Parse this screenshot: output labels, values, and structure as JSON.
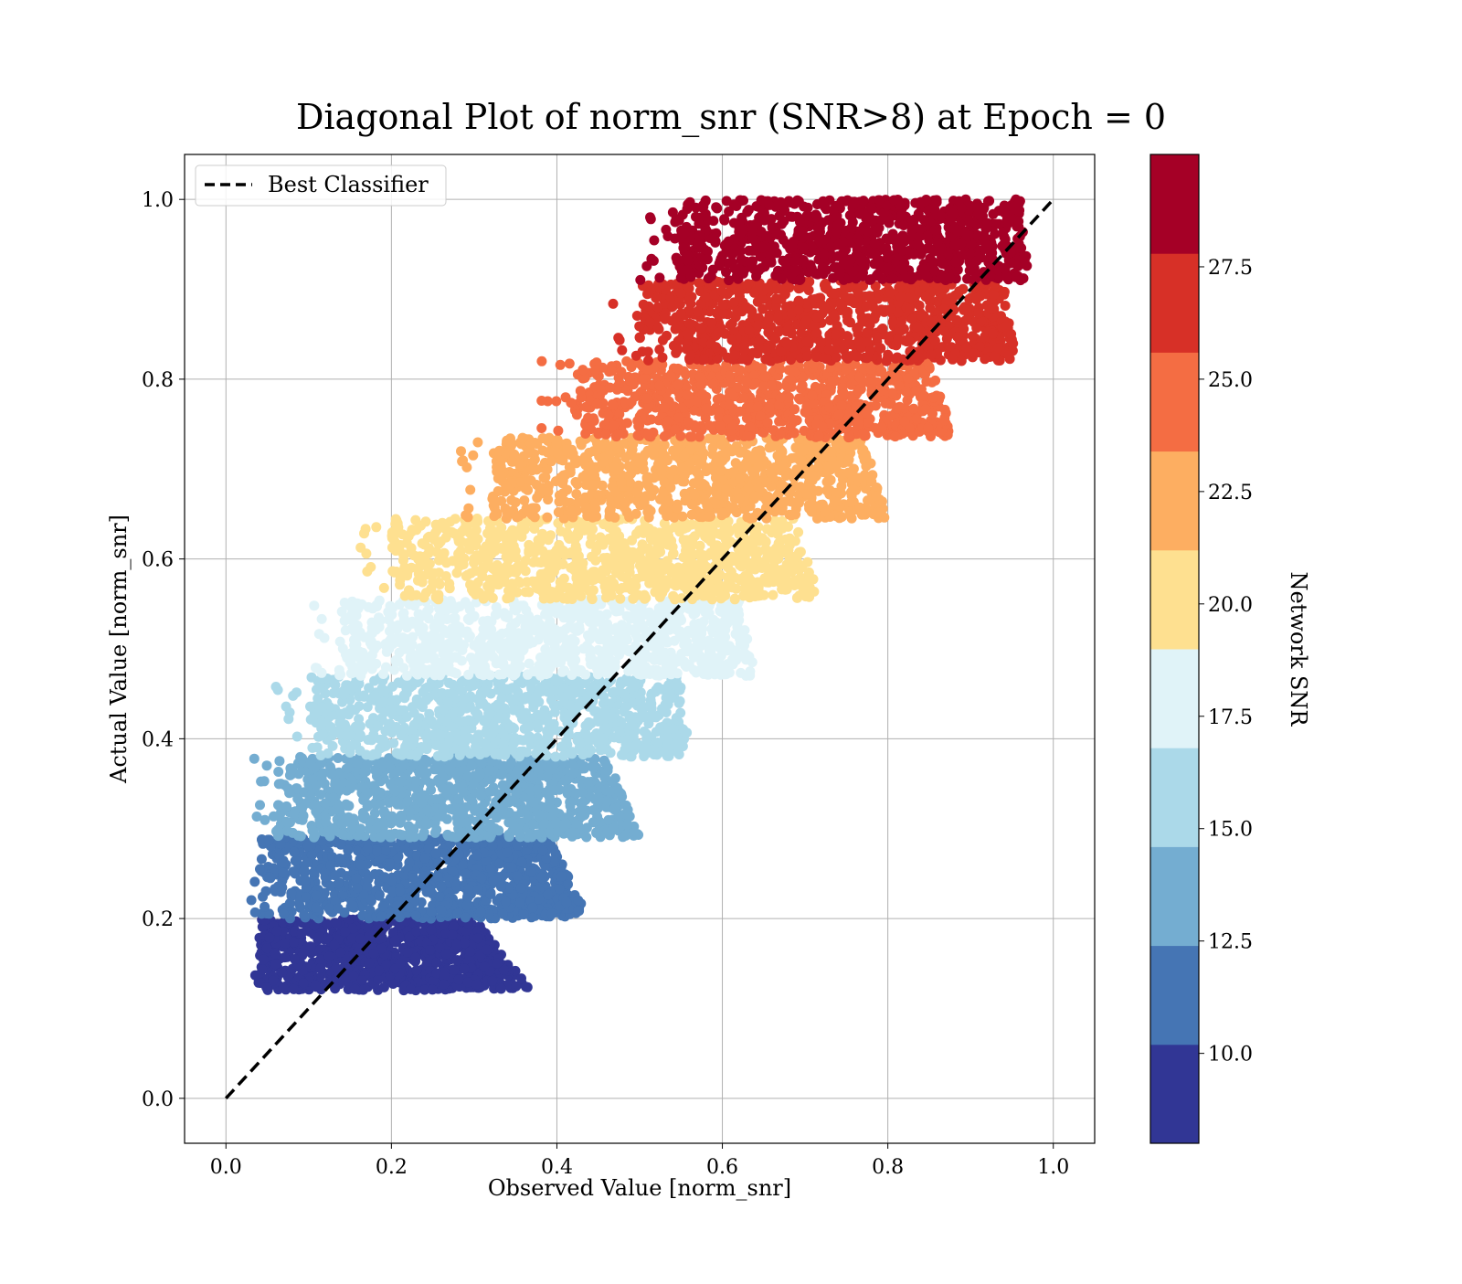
{
  "chart_data": {
    "type": "scatter",
    "title": "Diagonal Plot of norm_snr (SNR>8) at Epoch = 0",
    "xlabel": "Observed Value [norm_snr]",
    "ylabel": "Actual Value [norm_snr]",
    "xlim": [
      -0.05,
      1.05
    ],
    "ylim": [
      -0.05,
      1.05
    ],
    "x_ticks": [
      0.0,
      0.2,
      0.4,
      0.6,
      0.8,
      1.0
    ],
    "y_ticks": [
      0.0,
      0.2,
      0.4,
      0.6,
      0.8,
      1.0
    ],
    "x_tick_labels": [
      "0.0",
      "0.2",
      "0.4",
      "0.6",
      "0.8",
      "1.0"
    ],
    "y_tick_labels": [
      "0.0",
      "0.2",
      "0.4",
      "0.6",
      "0.8",
      "1.0"
    ],
    "grid": true,
    "legend": {
      "location": "upper-left",
      "entries": [
        "Best Classifier"
      ]
    },
    "reference_line": {
      "name": "Best Classifier",
      "style": "dashed",
      "color": "#000000",
      "x": [
        0.0,
        1.0
      ],
      "y": [
        0.0,
        1.0
      ]
    },
    "colorbar": {
      "label": "Network SNR",
      "range": [
        8.0,
        30.0
      ],
      "ticks": [
        10.0,
        12.5,
        15.0,
        17.5,
        20.0,
        22.5,
        25.0,
        27.5
      ],
      "tick_labels": [
        "10.0",
        "12.5",
        "15.0",
        "17.5",
        "20.0",
        "22.5",
        "25.0",
        "27.5"
      ],
      "colors": [
        "#313695",
        "#4575b4",
        "#74add1",
        "#abd9e9",
        "#e0f3f8",
        "#fee090",
        "#fdae61",
        "#f46d43",
        "#d73027",
        "#a50026"
      ]
    },
    "bands": [
      {
        "snr": 9.0,
        "color": "#313695",
        "y_range": [
          0.12,
          0.2
        ],
        "x_min": 0.04,
        "x_max_at_low": 0.37,
        "x_max_at_high": 0.3
      },
      {
        "snr": 11.2,
        "color": "#4575b4",
        "y_range": [
          0.2,
          0.29
        ],
        "x_min": 0.04,
        "x_max_at_low": 0.44,
        "x_max_at_high": 0.39
      },
      {
        "snr": 13.4,
        "color": "#74add1",
        "y_range": [
          0.29,
          0.38
        ],
        "x_min": 0.06,
        "x_max_at_low": 0.5,
        "x_max_at_high": 0.46
      },
      {
        "snr": 15.6,
        "color": "#abd9e9",
        "y_range": [
          0.38,
          0.47
        ],
        "x_min": 0.1,
        "x_max_at_low": 0.56,
        "x_max_at_high": 0.55
      },
      {
        "snr": 17.8,
        "color": "#e0f3f8",
        "y_range": [
          0.47,
          0.555
        ],
        "x_min": 0.14,
        "x_max_at_low": 0.64,
        "x_max_at_high": 0.62
      },
      {
        "snr": 20.0,
        "color": "#fee090",
        "y_range": [
          0.555,
          0.645
        ],
        "x_min": 0.2,
        "x_max_at_low": 0.72,
        "x_max_at_high": 0.69
      },
      {
        "snr": 22.2,
        "color": "#fdae61",
        "y_range": [
          0.645,
          0.735
        ],
        "x_min": 0.32,
        "x_max_at_low": 0.8,
        "x_max_at_high": 0.77
      },
      {
        "snr": 24.4,
        "color": "#f46d43",
        "y_range": [
          0.735,
          0.82
        ],
        "x_min": 0.42,
        "x_max_at_low": 0.88,
        "x_max_at_high": 0.85
      },
      {
        "snr": 26.6,
        "color": "#d73027",
        "y_range": [
          0.82,
          0.91
        ],
        "x_min": 0.5,
        "x_max_at_low": 0.96,
        "x_max_at_high": 0.94
      },
      {
        "snr": 28.8,
        "color": "#a50026",
        "y_range": [
          0.91,
          1.0
        ],
        "x_min": 0.54,
        "x_max_at_low": 0.97,
        "x_max_at_high": 0.96
      }
    ]
  }
}
